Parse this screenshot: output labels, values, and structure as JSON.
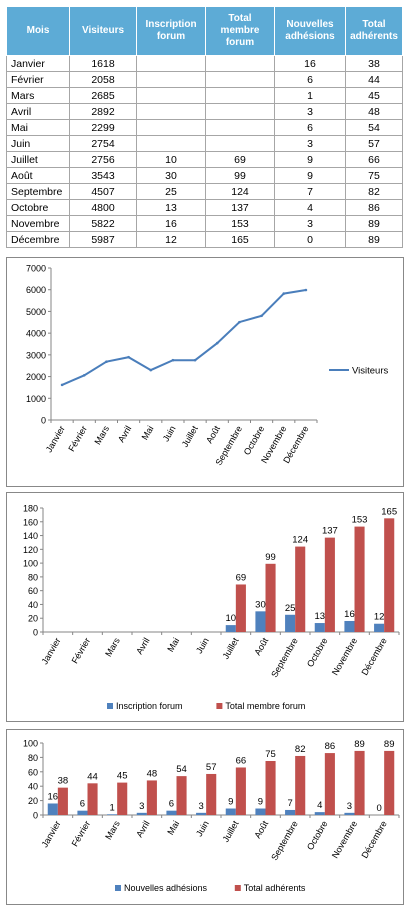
{
  "table": {
    "headers": [
      "Mois",
      "Visiteurs",
      "Inscription forum",
      "Total membre forum",
      "Nouvelles adhésions",
      "Total adhérents"
    ],
    "rows": [
      [
        "Janvier",
        "1618",
        "",
        "",
        "16",
        "38"
      ],
      [
        "Février",
        "2058",
        "",
        "",
        "6",
        "44"
      ],
      [
        "Mars",
        "2685",
        "",
        "",
        "1",
        "45"
      ],
      [
        "Avril",
        "2892",
        "",
        "",
        "3",
        "48"
      ],
      [
        "Mai",
        "2299",
        "",
        "",
        "6",
        "54"
      ],
      [
        "Juin",
        "2754",
        "",
        "",
        "3",
        "57"
      ],
      [
        "Juillet",
        "2756",
        "10",
        "69",
        "9",
        "66"
      ],
      [
        "Août",
        "3543",
        "30",
        "99",
        "9",
        "75"
      ],
      [
        "Septembre",
        "4507",
        "25",
        "124",
        "7",
        "82"
      ],
      [
        "Octobre",
        "4800",
        "13",
        "137",
        "4",
        "86"
      ],
      [
        "Novembre",
        "5822",
        "16",
        "153",
        "3",
        "89"
      ],
      [
        "Décembre",
        "5987",
        "12",
        "165",
        "0",
        "89"
      ]
    ]
  },
  "colors": {
    "header_bg": "#5dabd6",
    "line": "#4a7ebb",
    "bar_blue": "#4f81bd",
    "bar_red": "#c0504d"
  },
  "chart_data": [
    {
      "type": "line",
      "categories": [
        "Janvier",
        "Février",
        "Mars",
        "Avril",
        "Mai",
        "Juin",
        "Juillet",
        "Août",
        "Septembre",
        "Octobre",
        "Novembre",
        "Décembre"
      ],
      "series": [
        {
          "name": "Visiteurs",
          "values": [
            1618,
            2058,
            2685,
            2892,
            2299,
            2754,
            2756,
            3543,
            4507,
            4800,
            5822,
            5987
          ]
        }
      ],
      "ylim": [
        0,
        7000
      ],
      "yticks": [
        0,
        1000,
        2000,
        3000,
        4000,
        5000,
        6000,
        7000
      ],
      "legend": "right",
      "grid": false
    },
    {
      "type": "bar",
      "categories": [
        "Janvier",
        "Février",
        "Mars",
        "Avril",
        "Mai",
        "Juin",
        "Juillet",
        "Août",
        "Septembre",
        "Octobre",
        "Novembre",
        "Décembre"
      ],
      "series": [
        {
          "name": "Inscription forum",
          "values": [
            null,
            null,
            null,
            null,
            null,
            null,
            10,
            30,
            25,
            13,
            16,
            12
          ]
        },
        {
          "name": "Total membre forum",
          "values": [
            null,
            null,
            null,
            null,
            null,
            null,
            69,
            99,
            124,
            137,
            153,
            165
          ]
        }
      ],
      "ylim": [
        0,
        180
      ],
      "yticks": [
        0,
        20,
        40,
        60,
        80,
        100,
        120,
        140,
        160,
        180
      ],
      "legend": "bottom",
      "data_labels": true,
      "grid": false
    },
    {
      "type": "bar",
      "categories": [
        "Janvier",
        "Février",
        "Mars",
        "Avril",
        "Mai",
        "Juin",
        "Juillet",
        "Août",
        "Septembre",
        "Octobre",
        "Novembre",
        "Décembre"
      ],
      "series": [
        {
          "name": "Nouvelles adhésions",
          "values": [
            16,
            6,
            1,
            3,
            6,
            3,
            9,
            9,
            7,
            4,
            3,
            0
          ]
        },
        {
          "name": "Total adhérents",
          "values": [
            38,
            44,
            45,
            48,
            54,
            57,
            66,
            75,
            82,
            86,
            89,
            89
          ]
        }
      ],
      "ylim": [
        0,
        100
      ],
      "yticks": [
        0,
        20,
        40,
        60,
        80,
        100
      ],
      "legend": "bottom",
      "data_labels": true,
      "grid": false
    }
  ]
}
